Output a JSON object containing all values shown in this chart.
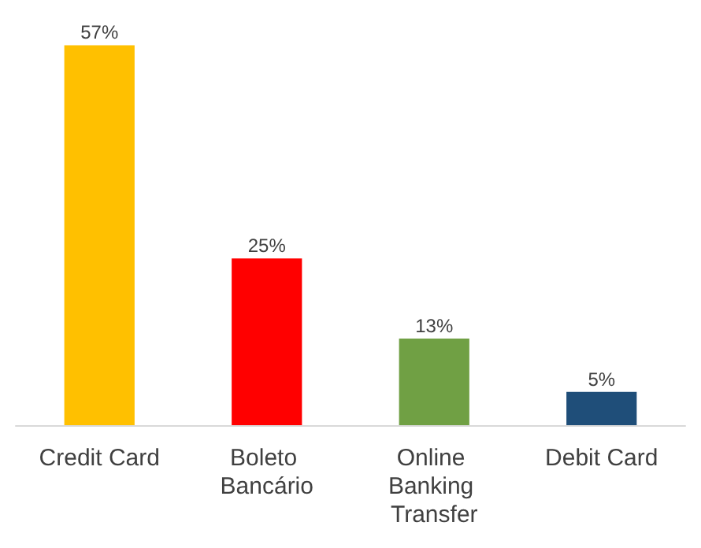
{
  "chart_data": {
    "type": "bar",
    "categories": [
      "Credit Card",
      "Boleto Bancário",
      "Online Banking Transfer",
      "Debit Card"
    ],
    "values": [
      57,
      25,
      13,
      5
    ],
    "colors": [
      "#ffc000",
      "#ff0000",
      "#70a044",
      "#1f4e79"
    ],
    "value_labels": [
      "57%",
      "25%",
      "13%",
      "5%"
    ]
  }
}
